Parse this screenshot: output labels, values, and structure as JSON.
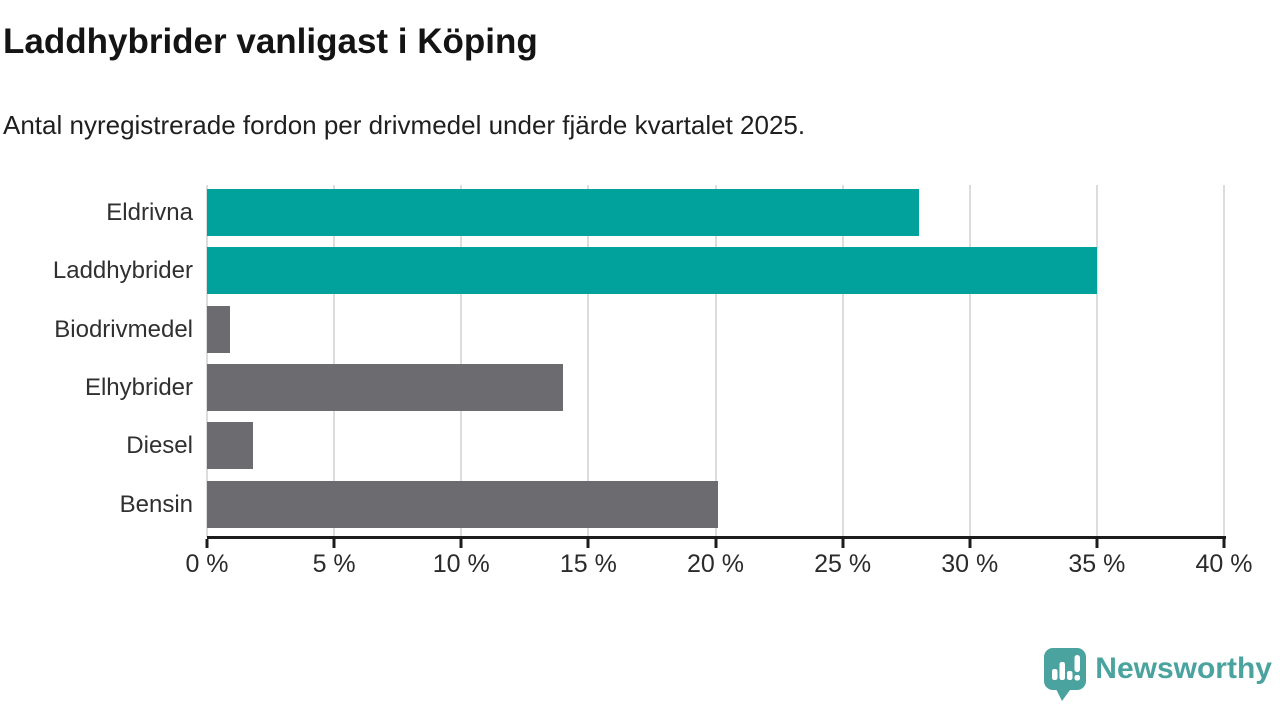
{
  "header": {
    "title": "Laddhybrider vanligast i Köping",
    "subtitle": "Antal nyregistrerade fordon per drivmedel under fjärde kvartalet 2025."
  },
  "chart_data": {
    "type": "bar",
    "orientation": "horizontal",
    "title": "Laddhybrider vanligast i Köping",
    "subtitle": "Antal nyregistrerade fordon per drivmedel under fjärde kvartalet 2025.",
    "categories": [
      "Eldrivna",
      "Laddhybrider",
      "Biodrivmedel",
      "Elhybrider",
      "Diesel",
      "Bensin"
    ],
    "values": [
      28,
      35,
      0.9,
      14,
      1.8,
      20.1
    ],
    "unit": "%",
    "xlim": [
      0,
      40
    ],
    "x_ticks": [
      0,
      5,
      10,
      15,
      20,
      25,
      30,
      35,
      40
    ],
    "x_tick_labels": [
      "0 %",
      "5 %",
      "10 %",
      "15 %",
      "20 %",
      "25 %",
      "30 %",
      "35 %",
      "40 %"
    ],
    "grid": true,
    "gridline_color": "#dcdcdc",
    "axis_color": "#1c1c1c",
    "bar_colors": [
      "#00a29b",
      "#00a29b",
      "#6b6b70",
      "#6b6b70",
      "#6b6b70",
      "#6b6b70"
    ],
    "highlight_color": "#00a29b",
    "default_color": "#6b6b70",
    "legend": null
  },
  "branding": {
    "logo_text": "Newsworthy",
    "logo_color": "#4aa39e",
    "logo_icon": "newsworthy-speech-bubble-chart-icon"
  }
}
